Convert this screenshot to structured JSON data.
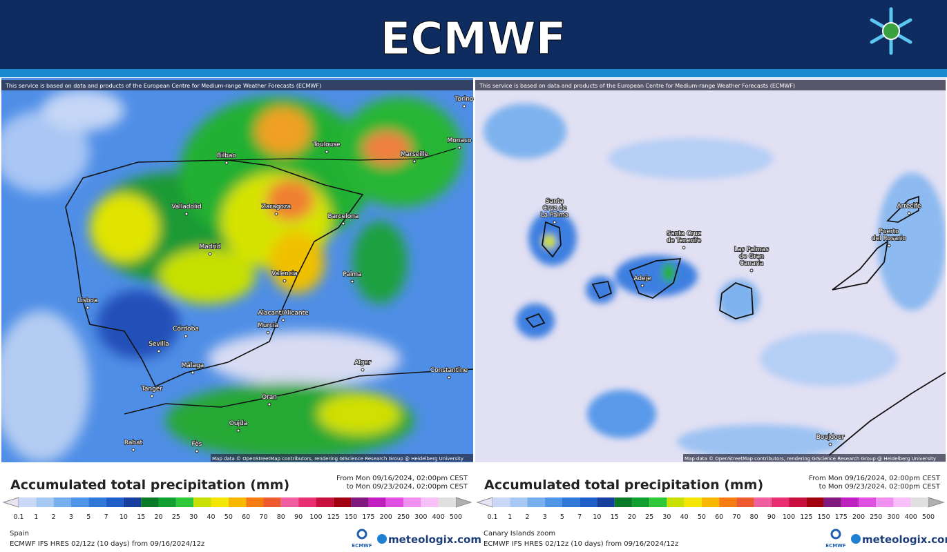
{
  "header": {
    "title": "ECMWF"
  },
  "panels": [
    {
      "notice": "This service is based on data and products of the European Centre for Medium-range Weather Forecasts (ECMWF)",
      "attribution": "Map data © OpenStreetMap contributors, rendering GIScience Research Group @ Heidelberg University",
      "cities": [
        [
          "Bilbao"
        ],
        [
          "Toulouse"
        ],
        [
          "Marseille"
        ],
        [
          "Monaco"
        ],
        [
          "Torino"
        ],
        [
          "Valladolid"
        ],
        [
          "Zaragoza"
        ],
        [
          "Barcelona"
        ],
        [
          "Madrid"
        ],
        [
          "Valencia"
        ],
        [
          "Palma"
        ],
        [
          "Lisboa"
        ],
        [
          "Alacant/Alicante"
        ],
        [
          "Murcia"
        ],
        [
          "Córdoba"
        ],
        [
          "Sevilla"
        ],
        [
          "Málaga"
        ],
        [
          "Alger"
        ],
        [
          "Oran"
        ],
        [
          "Constantine"
        ],
        [
          "Tanger"
        ],
        [
          "Oujda"
        ],
        [
          "Fès"
        ],
        [
          "Rabat"
        ]
      ],
      "title": "Accumulated total precipitation (mm)",
      "period": [
        "From Mon 09/16/2024, 02:00pm CEST",
        "to Mon 09/23/2024, 02:00pm CEST"
      ],
      "scale": [
        0.1,
        1,
        2,
        3,
        5,
        7,
        10,
        15,
        20,
        25,
        30,
        40,
        50,
        60,
        70,
        80,
        90,
        100,
        125,
        150,
        175,
        200,
        250,
        300,
        400,
        500
      ],
      "region": "Spain",
      "model": "ECMWF IFS HRES 02/12z (10 days) from 09/16/2024/12z",
      "logo": "ECMWF",
      "brand": "meteologix.com"
    },
    {
      "notice": "This service is based on data and products of the European Centre for Medium-range Weather Forecasts (ECMWF)",
      "attribution": "Map data © OpenStreetMap contributors, rendering GIScience Research Group @ Heidelberg University",
      "cities": [
        [
          "Santa",
          "Cruz de",
          "La Palma"
        ],
        [
          "Santa Cruz",
          "de Tenerife"
        ],
        [
          "Adeje"
        ],
        [
          "Las Palmas",
          "de Gran",
          "Canaria"
        ],
        [
          "Puerto",
          "del Rosario"
        ],
        [
          "Arrecife"
        ],
        [
          "Boujdour"
        ]
      ],
      "title": "Accumulated total precipitation (mm)",
      "period": [
        "From Mon 09/16/2024, 02:00pm CEST",
        "to Mon 09/23/2024, 02:00pm CEST"
      ],
      "scale": [
        0.1,
        1,
        2,
        3,
        5,
        7,
        10,
        15,
        20,
        25,
        30,
        40,
        50,
        60,
        70,
        80,
        90,
        100,
        125,
        150,
        175,
        200,
        250,
        300,
        400,
        500
      ],
      "region": "Canary Islands zoom",
      "model": "ECMWF IFS HRES 02/12z (10 days) from 09/16/2024/12z",
      "logo": "ECMWF",
      "brand": "meteologix.com"
    }
  ]
}
